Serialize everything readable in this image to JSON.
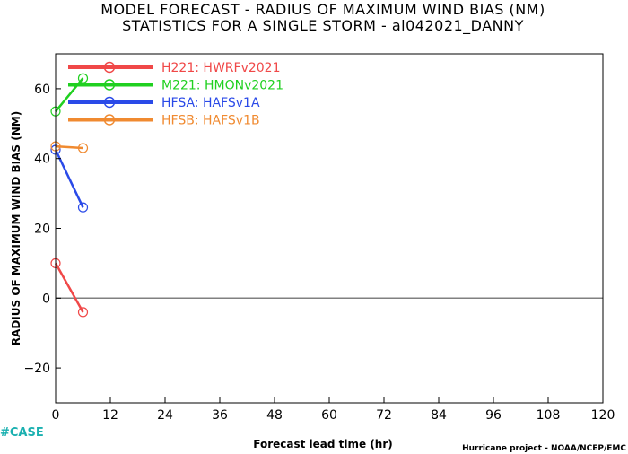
{
  "chart_data": {
    "type": "line",
    "title": "MODEL FORECAST - RADIUS OF MAXIMUM WIND BIAS (NM)",
    "subtitle": "STATISTICS FOR A SINGLE STORM - al042021_DANNY",
    "xlabel": "Forecast lead time (hr)",
    "ylabel": "RADIUS OF MAXIMUM WIND BIAS (NM)",
    "xlim": [
      0,
      120
    ],
    "ylim": [
      -30,
      70
    ],
    "xticks": [
      0,
      12,
      24,
      36,
      48,
      60,
      72,
      84,
      96,
      108,
      120
    ],
    "yticks": [
      -20,
      0,
      20,
      40,
      60
    ],
    "zero_line": true,
    "legend_position": "top-left",
    "series": [
      {
        "name": "H221: HWRFv2021",
        "color": "#f04848",
        "x": [
          0,
          6
        ],
        "y": [
          10,
          -4
        ]
      },
      {
        "name": "M221: HMONv2021",
        "color": "#20d020",
        "x": [
          0,
          6
        ],
        "y": [
          53.5,
          63
        ]
      },
      {
        "name": "HFSA: HAFSv1A",
        "color": "#2a4ae8",
        "x": [
          0,
          6
        ],
        "y": [
          42.5,
          26
        ]
      },
      {
        "name": "HFSB: HAFSv1B",
        "color": "#f08a30",
        "x": [
          0,
          6
        ],
        "y": [
          43.5,
          43
        ]
      }
    ]
  },
  "footer": {
    "case_tag": "#CASE",
    "credit": "Hurricane project - NOAA/NCEP/EMC"
  }
}
